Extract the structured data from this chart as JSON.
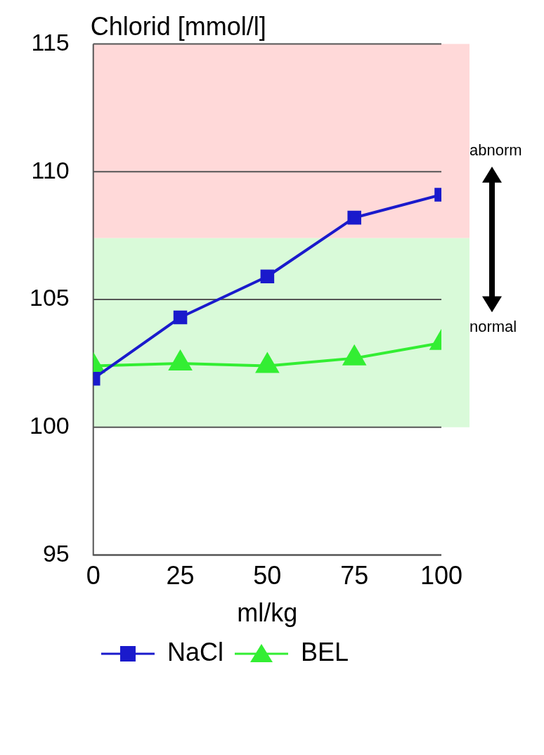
{
  "chart_data": {
    "type": "line",
    "title": "Chlorid [mmol/l]",
    "xlabel": "ml/kg",
    "x": [
      0,
      25,
      50,
      75,
      100
    ],
    "series": [
      {
        "name": "NaCl",
        "color": "#1a1acc",
        "marker": "square",
        "values": [
          101.9,
          104.3,
          105.9,
          108.2,
          109.1
        ]
      },
      {
        "name": "BEL",
        "color": "#33ee33",
        "marker": "triangle",
        "values": [
          102.4,
          102.5,
          102.4,
          102.7,
          103.3
        ]
      }
    ],
    "xlim": [
      0,
      100
    ],
    "xticks": [
      0,
      25,
      50,
      75,
      100
    ],
    "ylim": [
      95,
      115
    ],
    "yticks": [
      95,
      100,
      105,
      110,
      115
    ],
    "bands": [
      {
        "axis": "y",
        "from": 107.4,
        "to": 115,
        "color": "#ffd9d9"
      },
      {
        "axis": "y",
        "from": 100,
        "to": 107.4,
        "color": "#d9fad9"
      }
    ],
    "annotations": [
      "abnorm",
      "normal"
    ],
    "grid": "y",
    "legend": "bottom"
  }
}
